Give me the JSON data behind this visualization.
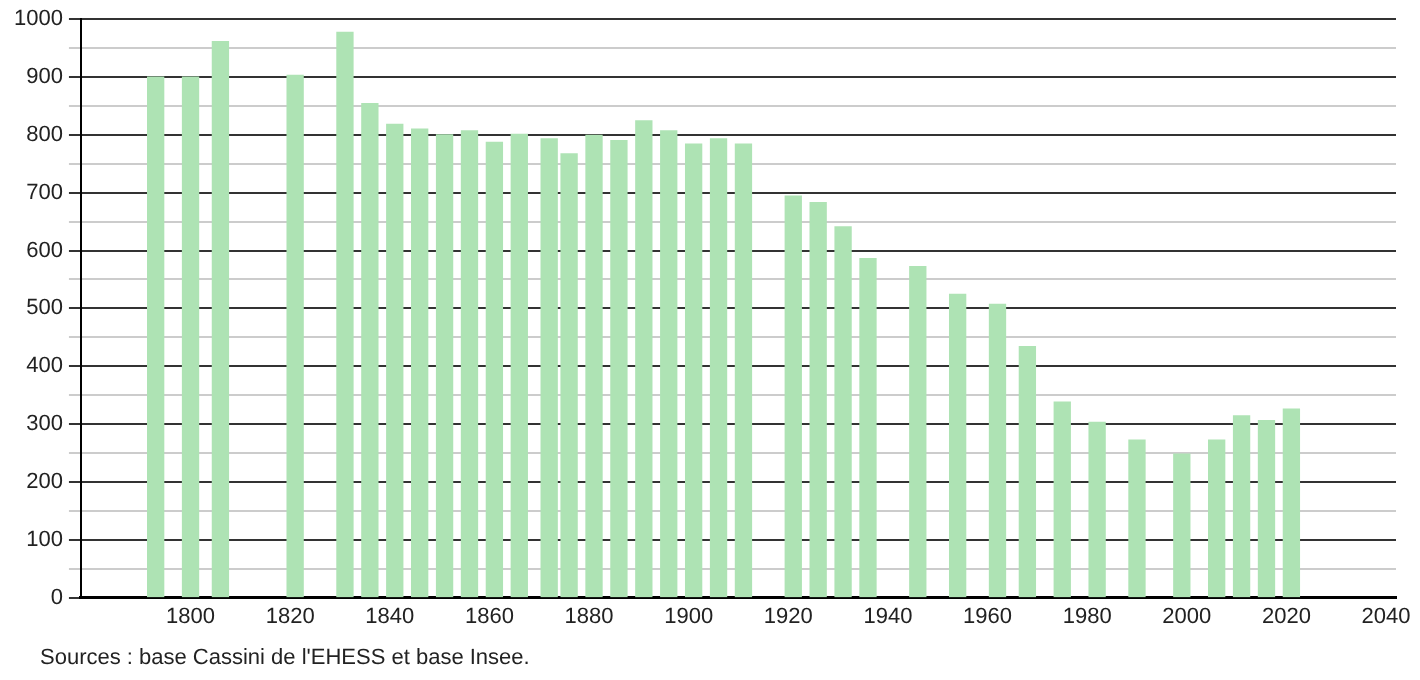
{
  "chart_data": {
    "type": "bar",
    "x": [
      1793,
      1800,
      1806,
      1821,
      1831,
      1836,
      1841,
      1846,
      1851,
      1856,
      1861,
      1866,
      1872,
      1876,
      1881,
      1886,
      1891,
      1896,
      1901,
      1906,
      1911,
      1921,
      1926,
      1931,
      1936,
      1946,
      1954,
      1962,
      1968,
      1975,
      1982,
      1990,
      1999,
      2006,
      2011,
      2016,
      2021
    ],
    "values": [
      900,
      900,
      961,
      903,
      977,
      854,
      818,
      810,
      800,
      807,
      787,
      801,
      793,
      767,
      799,
      790,
      824,
      807,
      784,
      793,
      784,
      694,
      683,
      641,
      586,
      572,
      524,
      507,
      434,
      338,
      303,
      272,
      248,
      272,
      314,
      306,
      326
    ],
    "color": "#aee3b4",
    "xlim": [
      1778,
      2042
    ],
    "xticks": [
      1800,
      1820,
      1840,
      1860,
      1880,
      1900,
      1920,
      1940,
      1960,
      1980,
      2000,
      2020,
      2040
    ],
    "ylim": [
      0,
      1000
    ],
    "yticks": [
      0,
      {
        "value": 50,
        "label": null
      },
      100,
      {
        "value": 150,
        "label": null
      },
      200,
      {
        "value": 250,
        "label": null
      },
      300,
      {
        "value": 350,
        "label": null
      },
      400,
      {
        "value": 450,
        "label": null
      },
      500,
      {
        "value": 550,
        "label": null
      },
      600,
      {
        "value": 650,
        "label": null
      },
      700,
      {
        "value": 750,
        "label": null
      },
      800,
      {
        "value": 850,
        "label": null
      },
      900,
      {
        "value": 950,
        "label": null
      },
      1000
    ],
    "grid": "y",
    "annotations": [
      "Sources : base Cassini de l'EHESS et base Insee."
    ]
  }
}
